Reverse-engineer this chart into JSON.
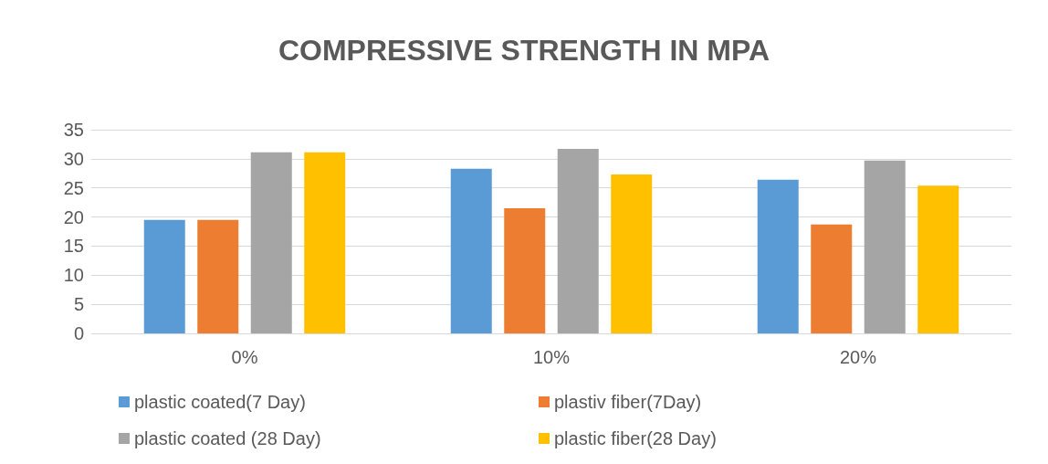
{
  "chart_data": {
    "type": "bar",
    "title": "COMPRESSIVE STRENGTH IN MPA",
    "categories": [
      "0%",
      "10%",
      "20%"
    ],
    "series": [
      {
        "name": "plastic coated(7 Day)",
        "color": "#5b9bd5",
        "values": [
          19.5,
          28.3,
          26.4
        ]
      },
      {
        "name": "plastiv fiber(7Day)",
        "color": "#ed7d31",
        "values": [
          19.5,
          21.5,
          18.7
        ]
      },
      {
        "name": "plastic coated (28 Day)",
        "color": "#a5a5a5",
        "values": [
          31.1,
          31.7,
          29.7
        ]
      },
      {
        "name": "plastic fiber(28 Day)",
        "color": "#ffc000",
        "values": [
          31.1,
          27.3,
          25.4
        ]
      }
    ],
    "ylim": [
      0,
      35
    ],
    "yticks": [
      0,
      5,
      10,
      15,
      20,
      25,
      30,
      35
    ],
    "grid": "y",
    "legend": "bottom"
  }
}
